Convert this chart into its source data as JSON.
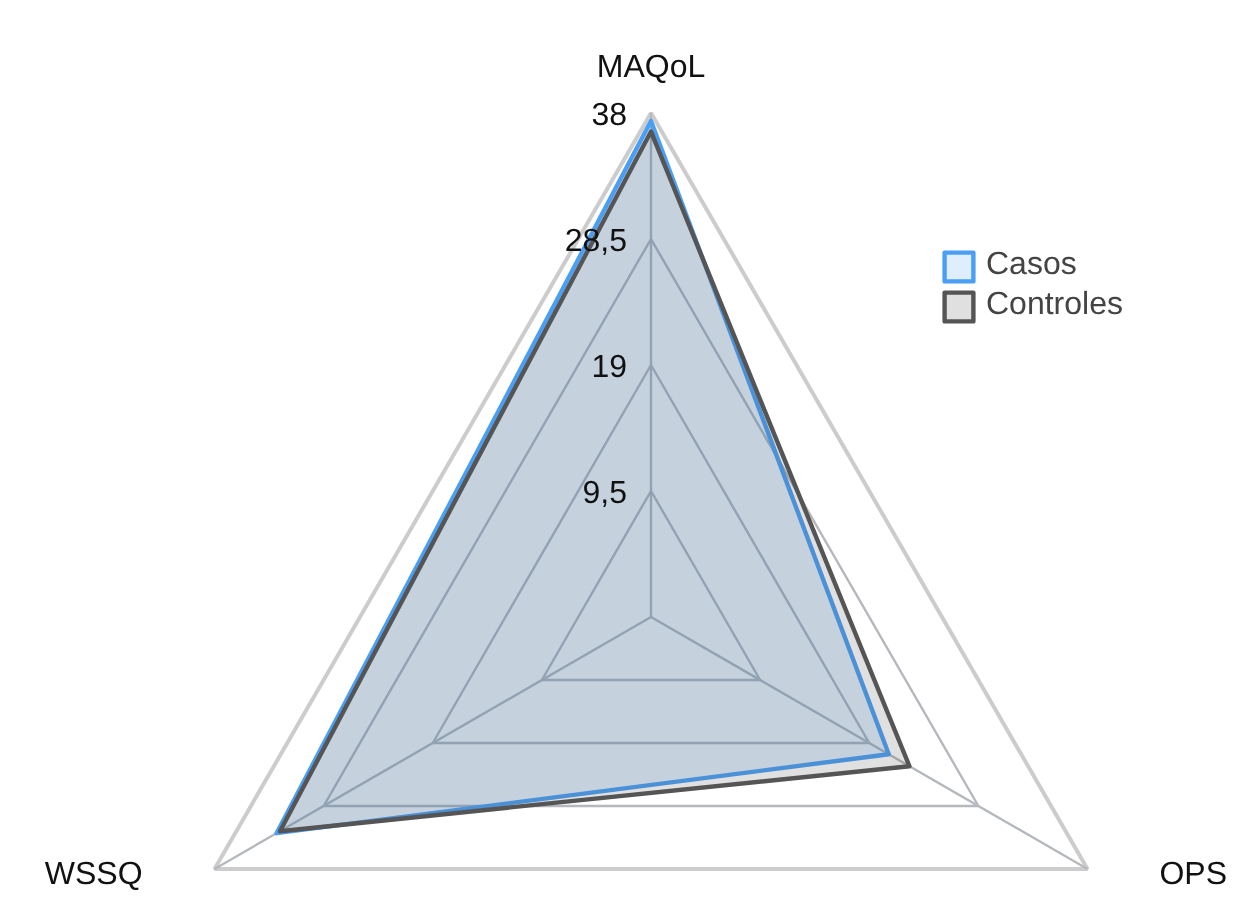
{
  "chart_data": {
    "type": "radar",
    "categories": [
      "MAQoL",
      "OPS",
      "WSSQ"
    ],
    "ylim": [
      0,
      38
    ],
    "yticks": [
      {
        "value": 9.5,
        "label": "9,5"
      },
      {
        "value": 19,
        "label": "19"
      },
      {
        "value": 28.5,
        "label": "28,5"
      },
      {
        "value": 38,
        "label": "38"
      }
    ],
    "grid": true,
    "legend": "top right",
    "series": [
      {
        "name": "Casos",
        "color": "#4a9ff5",
        "values": [
          37.4,
          20.7,
          32.6
        ]
      },
      {
        "name": "Controles",
        "color": "#555555",
        "values": [
          36.6,
          22.5,
          32.3
        ]
      }
    ]
  }
}
